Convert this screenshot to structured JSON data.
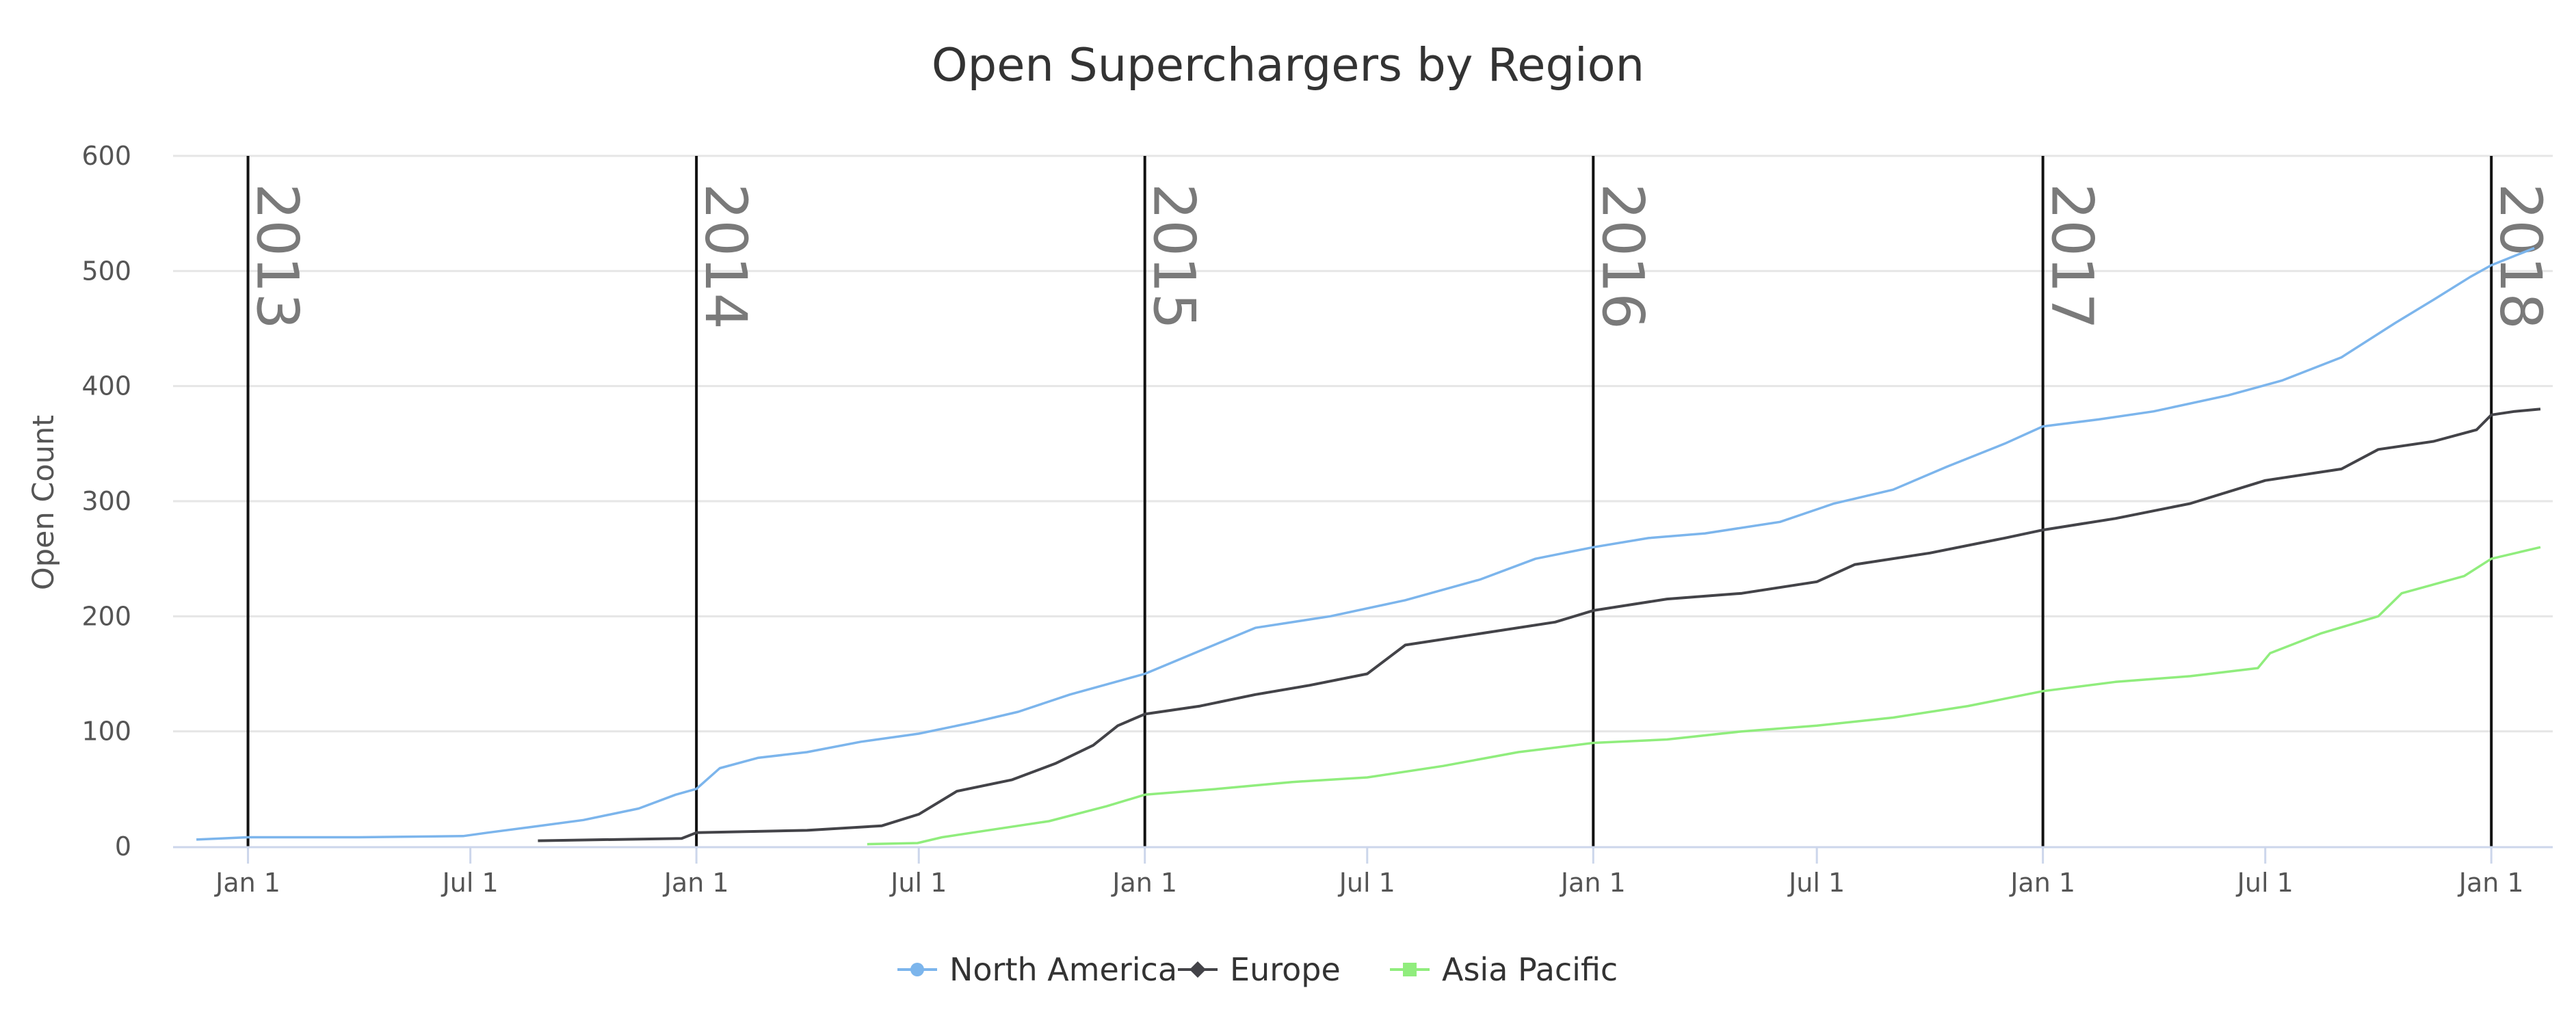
{
  "chart_data": {
    "type": "line",
    "title": "Open Superchargers by Region",
    "ylabel": "Open Count",
    "xlabel": "",
    "x_type": "datetime",
    "xlim": [
      "2012-11-01",
      "2018-02-20"
    ],
    "ylim": [
      0,
      600
    ],
    "y_ticks": [
      0,
      100,
      200,
      300,
      400,
      500,
      600
    ],
    "x_ticks": [
      {
        "date": "2013-01-01",
        "label": "Jan 1"
      },
      {
        "date": "2013-07-01",
        "label": "Jul 1"
      },
      {
        "date": "2014-01-01",
        "label": "Jan 1"
      },
      {
        "date": "2014-07-01",
        "label": "Jul 1"
      },
      {
        "date": "2015-01-01",
        "label": "Jan 1"
      },
      {
        "date": "2015-07-01",
        "label": "Jul 1"
      },
      {
        "date": "2016-01-01",
        "label": "Jan 1"
      },
      {
        "date": "2016-07-01",
        "label": "Jul 1"
      },
      {
        "date": "2017-01-01",
        "label": "Jan 1"
      },
      {
        "date": "2017-07-01",
        "label": "Jul 1"
      },
      {
        "date": "2018-01-01",
        "label": "Jan 1"
      }
    ],
    "year_markers": [
      {
        "date": "2013-01-01",
        "label": "2013"
      },
      {
        "date": "2014-01-01",
        "label": "2014"
      },
      {
        "date": "2015-01-01",
        "label": "2015"
      },
      {
        "date": "2016-01-01",
        "label": "2016"
      },
      {
        "date": "2017-01-01",
        "label": "2017"
      },
      {
        "date": "2018-01-01",
        "label": "2018"
      }
    ],
    "grid": true,
    "legend_position": "bottom-center",
    "series": [
      {
        "name": "North America",
        "color": "#7cb5ec",
        "marker": "circle",
        "points": [
          [
            "2012-11-20",
            6
          ],
          [
            "2013-01-01",
            8
          ],
          [
            "2013-04-01",
            8
          ],
          [
            "2013-06-25",
            9
          ],
          [
            "2013-07-15",
            12
          ],
          [
            "2013-08-20",
            17
          ],
          [
            "2013-10-01",
            23
          ],
          [
            "2013-11-15",
            33
          ],
          [
            "2013-12-15",
            45
          ],
          [
            "2014-01-01",
            50
          ],
          [
            "2014-01-20",
            68
          ],
          [
            "2014-02-20",
            77
          ],
          [
            "2014-04-01",
            82
          ],
          [
            "2014-05-15",
            91
          ],
          [
            "2014-07-01",
            98
          ],
          [
            "2014-08-15",
            108
          ],
          [
            "2014-09-20",
            117
          ],
          [
            "2014-11-01",
            132
          ],
          [
            "2014-12-15",
            145
          ],
          [
            "2015-01-01",
            150
          ],
          [
            "2015-02-15",
            170
          ],
          [
            "2015-04-01",
            190
          ],
          [
            "2015-06-01",
            200
          ],
          [
            "2015-08-01",
            214
          ],
          [
            "2015-10-01",
            232
          ],
          [
            "2015-11-15",
            250
          ],
          [
            "2016-01-01",
            260
          ],
          [
            "2016-02-15",
            268
          ],
          [
            "2016-04-01",
            272
          ],
          [
            "2016-06-01",
            282
          ],
          [
            "2016-07-15",
            298
          ],
          [
            "2016-09-01",
            310
          ],
          [
            "2016-10-15",
            330
          ],
          [
            "2016-12-01",
            350
          ],
          [
            "2017-01-01",
            365
          ],
          [
            "2017-02-15",
            371
          ],
          [
            "2017-04-01",
            378
          ],
          [
            "2017-06-01",
            392
          ],
          [
            "2017-07-15",
            405
          ],
          [
            "2017-09-01",
            425
          ],
          [
            "2017-10-15",
            455
          ],
          [
            "2017-11-15",
            475
          ],
          [
            "2017-12-15",
            495
          ],
          [
            "2018-01-01",
            505
          ],
          [
            "2018-02-05",
            520
          ]
        ]
      },
      {
        "name": "Europe",
        "color": "#434348",
        "marker": "diamond",
        "points": [
          [
            "2013-08-25",
            5
          ],
          [
            "2013-12-20",
            7
          ],
          [
            "2014-01-01",
            12
          ],
          [
            "2014-04-01",
            14
          ],
          [
            "2014-06-01",
            18
          ],
          [
            "2014-07-01",
            28
          ],
          [
            "2014-08-01",
            48
          ],
          [
            "2014-09-15",
            58
          ],
          [
            "2014-10-20",
            72
          ],
          [
            "2014-11-20",
            88
          ],
          [
            "2014-12-10",
            105
          ],
          [
            "2015-01-01",
            115
          ],
          [
            "2015-02-15",
            122
          ],
          [
            "2015-04-01",
            132
          ],
          [
            "2015-05-15",
            140
          ],
          [
            "2015-07-01",
            150
          ],
          [
            "2015-08-01",
            175
          ],
          [
            "2015-10-01",
            185
          ],
          [
            "2015-12-01",
            195
          ],
          [
            "2016-01-01",
            205
          ],
          [
            "2016-03-01",
            215
          ],
          [
            "2016-05-01",
            220
          ],
          [
            "2016-07-01",
            230
          ],
          [
            "2016-08-01",
            245
          ],
          [
            "2016-10-01",
            255
          ],
          [
            "2016-12-01",
            268
          ],
          [
            "2017-01-01",
            275
          ],
          [
            "2017-03-01",
            285
          ],
          [
            "2017-05-01",
            298
          ],
          [
            "2017-07-01",
            318
          ],
          [
            "2017-09-01",
            328
          ],
          [
            "2017-10-01",
            345
          ],
          [
            "2017-11-15",
            352
          ],
          [
            "2017-12-20",
            362
          ],
          [
            "2018-01-01",
            375
          ],
          [
            "2018-01-20",
            378
          ],
          [
            "2018-02-10",
            380
          ]
        ]
      },
      {
        "name": "Asia Pacific",
        "color": "#90ed7d",
        "marker": "square",
        "points": [
          [
            "2014-05-20",
            2
          ],
          [
            "2014-06-30",
            3
          ],
          [
            "2014-07-20",
            8
          ],
          [
            "2014-09-01",
            15
          ],
          [
            "2014-10-15",
            22
          ],
          [
            "2014-12-01",
            35
          ],
          [
            "2015-01-01",
            45
          ],
          [
            "2015-03-01",
            50
          ],
          [
            "2015-05-01",
            56
          ],
          [
            "2015-07-01",
            60
          ],
          [
            "2015-09-01",
            70
          ],
          [
            "2015-11-01",
            82
          ],
          [
            "2016-01-01",
            90
          ],
          [
            "2016-03-01",
            93
          ],
          [
            "2016-05-01",
            100
          ],
          [
            "2016-07-01",
            105
          ],
          [
            "2016-09-01",
            112
          ],
          [
            "2016-11-01",
            122
          ],
          [
            "2017-01-01",
            135
          ],
          [
            "2017-03-01",
            143
          ],
          [
            "2017-05-01",
            148
          ],
          [
            "2017-06-25",
            155
          ],
          [
            "2017-07-05",
            168
          ],
          [
            "2017-08-15",
            185
          ],
          [
            "2017-10-01",
            200
          ],
          [
            "2017-10-20",
            220
          ],
          [
            "2017-12-10",
            235
          ],
          [
            "2018-01-01",
            250
          ],
          [
            "2018-02-10",
            260
          ]
        ]
      }
    ]
  }
}
